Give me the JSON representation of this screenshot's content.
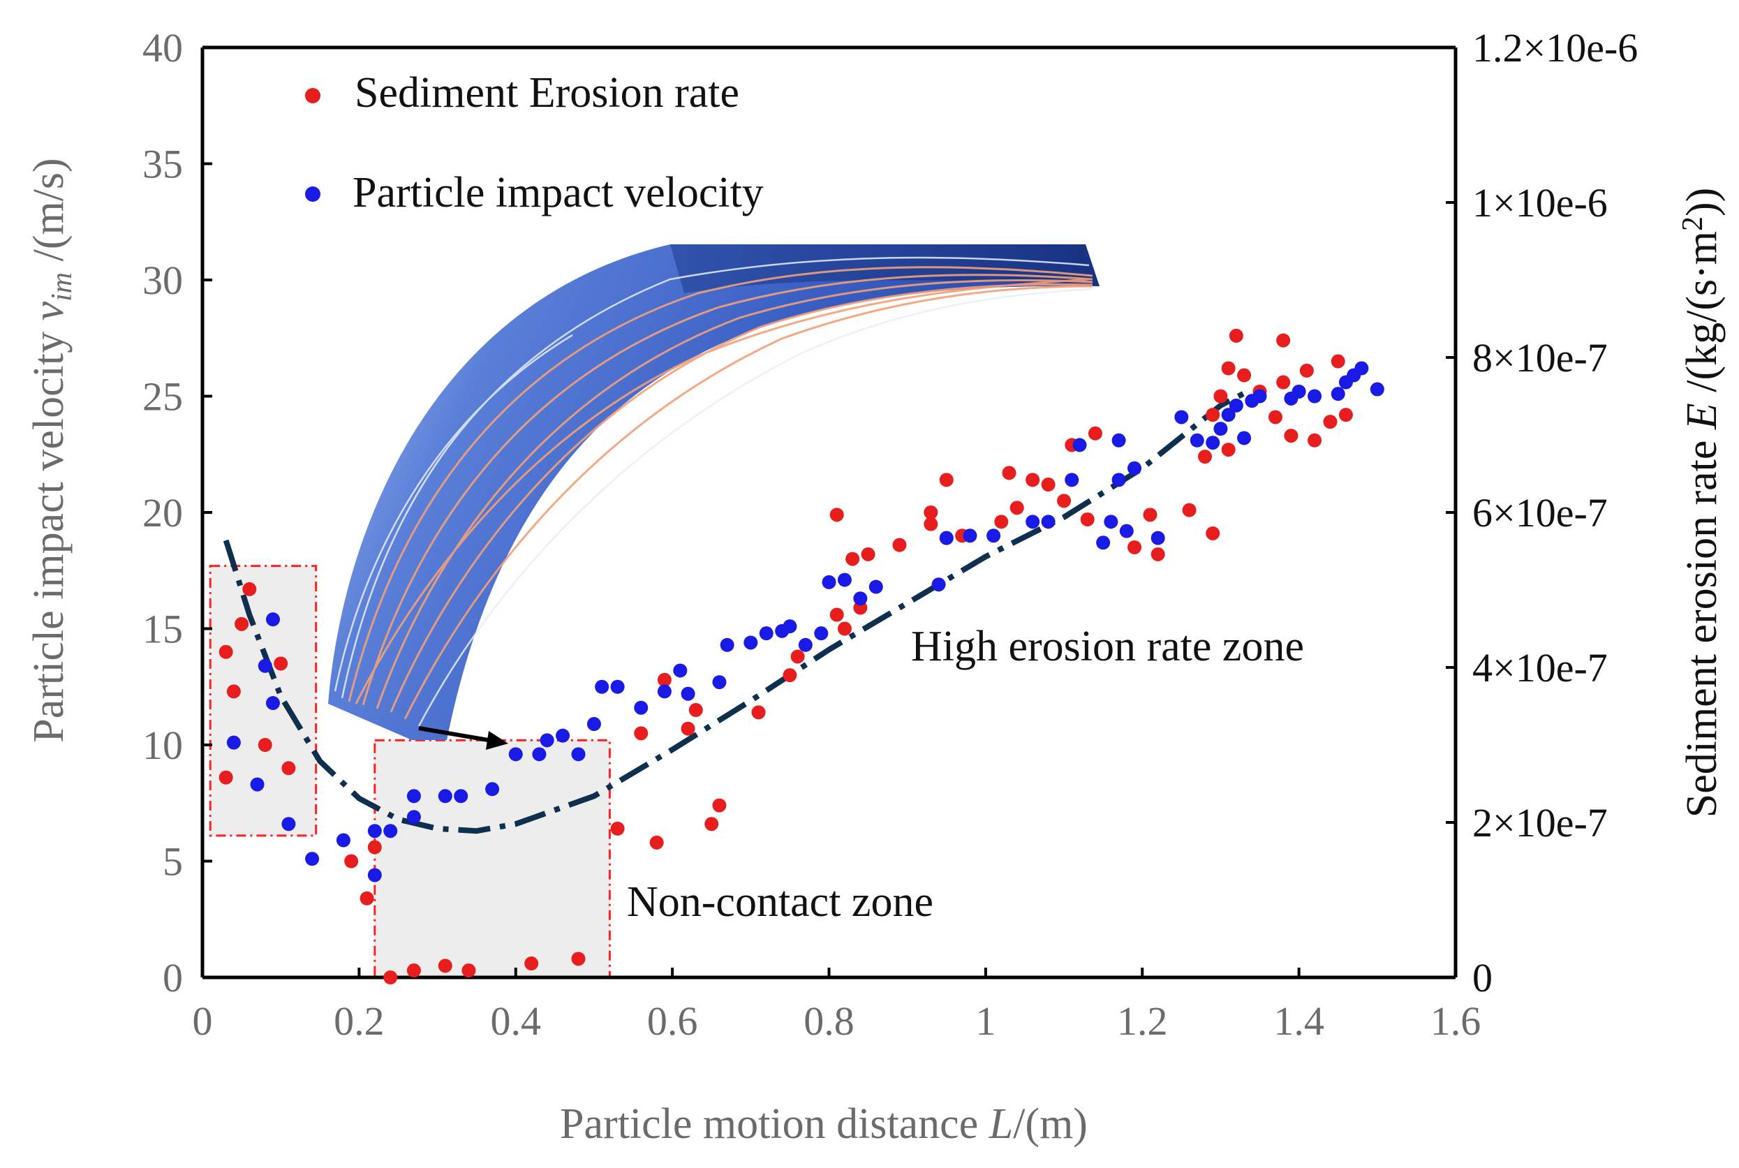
{
  "chart_data": {
    "type": "scatter",
    "title": "",
    "xlabel": "Particle motion distance L/(m)",
    "ylabel": "Particle impact velocity v_im /(m/s)",
    "y2label": "Sediment erosion rate E /(kg/(s·m²))",
    "xlim": [
      0,
      1.6
    ],
    "ylim": [
      0,
      40
    ],
    "y2lim": [
      0,
      1.2e-06
    ],
    "x_ticks": [
      "0",
      "0.2",
      "0.4",
      "0.6",
      "0.8",
      "1",
      "1.2",
      "1.4",
      "1.6"
    ],
    "y_ticks": [
      "0",
      "5",
      "10",
      "15",
      "20",
      "25",
      "30",
      "35",
      "40"
    ],
    "y2_ticks": [
      "0",
      "2×10e-7",
      "4×10e-7",
      "6×10e-7",
      "8×10e-7",
      "1×10e-6",
      "1.2×10e-6"
    ],
    "legend": [
      {
        "label": "Sediment Erosion rate",
        "color": "#e81e1e"
      },
      {
        "label": "Particle impact velocity",
        "color": "#1a1ae6"
      }
    ],
    "series": [
      {
        "name": "Sediment Erosion rate",
        "color": "#e81e1e",
        "axis": "left-scale (plotted against left axis values)",
        "x": [
          0.03,
          0.04,
          0.05,
          0.06,
          0.03,
          0.08,
          0.1,
          0.11,
          0.19,
          0.21,
          0.22,
          0.24,
          0.27,
          0.31,
          0.34,
          0.42,
          0.48,
          0.53,
          0.58,
          0.56,
          0.59,
          0.62,
          0.63,
          0.65,
          0.66,
          0.71,
          0.75,
          0.76,
          0.81,
          0.82,
          0.84,
          0.85,
          0.81,
          0.83,
          0.89,
          0.93,
          0.93,
          0.95,
          0.95,
          0.97,
          1.02,
          1.03,
          1.04,
          1.06,
          1.08,
          1.1,
          1.11,
          1.13,
          1.14,
          1.19,
          1.21,
          1.22,
          1.26,
          1.28,
          1.29,
          1.29,
          1.3,
          1.31,
          1.31,
          1.32,
          1.33,
          1.35,
          1.37,
          1.38,
          1.38,
          1.39,
          1.41,
          1.42,
          1.44,
          1.45,
          1.46
        ],
        "y": [
          14.0,
          12.3,
          15.2,
          16.7,
          8.6,
          10.0,
          13.5,
          9.0,
          5.0,
          3.4,
          5.6,
          0.0,
          0.3,
          0.5,
          0.3,
          0.6,
          0.8,
          6.4,
          5.8,
          10.5,
          12.8,
          10.7,
          11.5,
          6.6,
          7.4,
          11.4,
          13.0,
          13.8,
          15.6,
          15.0,
          15.9,
          18.2,
          19.9,
          18.0,
          18.6,
          19.5,
          20.0,
          18.9,
          21.4,
          19.0,
          19.6,
          21.7,
          20.2,
          21.4,
          21.2,
          20.5,
          22.9,
          19.7,
          23.4,
          18.5,
          19.9,
          18.2,
          20.1,
          22.4,
          19.1,
          24.2,
          25.0,
          22.7,
          26.2,
          27.6,
          25.9,
          25.2,
          24.1,
          25.6,
          27.4,
          23.3,
          26.1,
          23.1,
          23.9,
          26.5,
          24.2
        ]
      },
      {
        "name": "Particle impact velocity",
        "color": "#1a1ae6",
        "axis": "left",
        "x": [
          0.04,
          0.07,
          0.08,
          0.09,
          0.09,
          0.11,
          0.14,
          0.18,
          0.22,
          0.22,
          0.24,
          0.27,
          0.27,
          0.31,
          0.33,
          0.37,
          0.4,
          0.43,
          0.44,
          0.46,
          0.48,
          0.5,
          0.51,
          0.53,
          0.56,
          0.59,
          0.61,
          0.62,
          0.66,
          0.67,
          0.7,
          0.72,
          0.74,
          0.75,
          0.77,
          0.79,
          0.8,
          0.82,
          0.84,
          0.86,
          0.94,
          0.95,
          0.98,
          1.01,
          1.06,
          1.08,
          1.11,
          1.12,
          1.15,
          1.16,
          1.17,
          1.17,
          1.18,
          1.19,
          1.22,
          1.25,
          1.27,
          1.29,
          1.3,
          1.31,
          1.32,
          1.33,
          1.34,
          1.35,
          1.39,
          1.4,
          1.42,
          1.45,
          1.46,
          1.47,
          1.48,
          1.5
        ],
        "y": [
          10.1,
          8.3,
          13.4,
          15.4,
          11.8,
          6.6,
          5.1,
          5.9,
          4.4,
          6.3,
          6.3,
          7.8,
          6.9,
          7.8,
          7.8,
          8.1,
          9.6,
          9.6,
          10.2,
          10.4,
          9.6,
          10.9,
          12.5,
          12.5,
          11.6,
          12.3,
          13.2,
          12.2,
          12.7,
          14.3,
          14.4,
          14.8,
          14.9,
          15.1,
          14.3,
          14.8,
          17.0,
          17.1,
          16.3,
          16.8,
          16.9,
          18.9,
          19.0,
          19.0,
          19.6,
          19.6,
          21.4,
          22.9,
          18.7,
          19.6,
          21.4,
          23.1,
          19.2,
          21.9,
          18.9,
          24.1,
          23.1,
          23.0,
          23.6,
          24.2,
          24.6,
          23.2,
          24.8,
          25.0,
          24.9,
          25.2,
          25.0,
          25.1,
          25.6,
          25.9,
          26.2,
          25.3
        ]
      }
    ],
    "trend_line": {
      "style": "dash-dot",
      "color": "#0f2f4f",
      "x": [
        0.03,
        0.06,
        0.1,
        0.15,
        0.2,
        0.25,
        0.3,
        0.35,
        0.4,
        0.5,
        0.6,
        0.7,
        0.8,
        0.9,
        1.0,
        1.1,
        1.2,
        1.3,
        1.34
      ],
      "y": [
        18.8,
        15.6,
        12.1,
        9.3,
        7.7,
        6.8,
        6.4,
        6.3,
        6.6,
        7.8,
        9.8,
        11.9,
        14.1,
        16.1,
        18.1,
        19.8,
        21.9,
        24.6,
        25.3
      ]
    },
    "annotations": [
      {
        "text": "High erosion rate zone",
        "x": 0.91,
        "y": 14.0
      },
      {
        "text": "Non-contact zone",
        "x": 0.54,
        "y": 3.2
      }
    ],
    "zones": [
      {
        "name": "non-contact-zone-left",
        "x_range": [
          0.01,
          0.145
        ],
        "y_range": [
          6.1,
          17.7
        ]
      },
      {
        "name": "non-contact-zone-bottom",
        "x_range": [
          0.22,
          0.52
        ],
        "y_range": [
          0.0,
          10.2
        ]
      }
    ]
  },
  "ui": {
    "xlabel_main": "Particle motion distance ",
    "xlabel_var": "L",
    "xlabel_unit": "/(m)",
    "ylabel_main": "Particle impact velocity ",
    "ylabel_var": "v",
    "ylabel_sub": "im",
    "ylabel_unit": " /(m/s)",
    "y2label_main": "Sediment erosion rate ",
    "y2label_var": "E",
    "y2label_unit": " /(kg/(s·m",
    "y2label_sup": "2",
    "y2label_close": "))",
    "legend_red": "Sediment Erosion rate",
    "legend_blue": "Particle impact velocity",
    "anno_high": "High erosion rate zone",
    "anno_noncontact": "Non-contact zone",
    "inset_image": "blade surface streamline rendering (blue surface with orange particle trajectories)"
  }
}
